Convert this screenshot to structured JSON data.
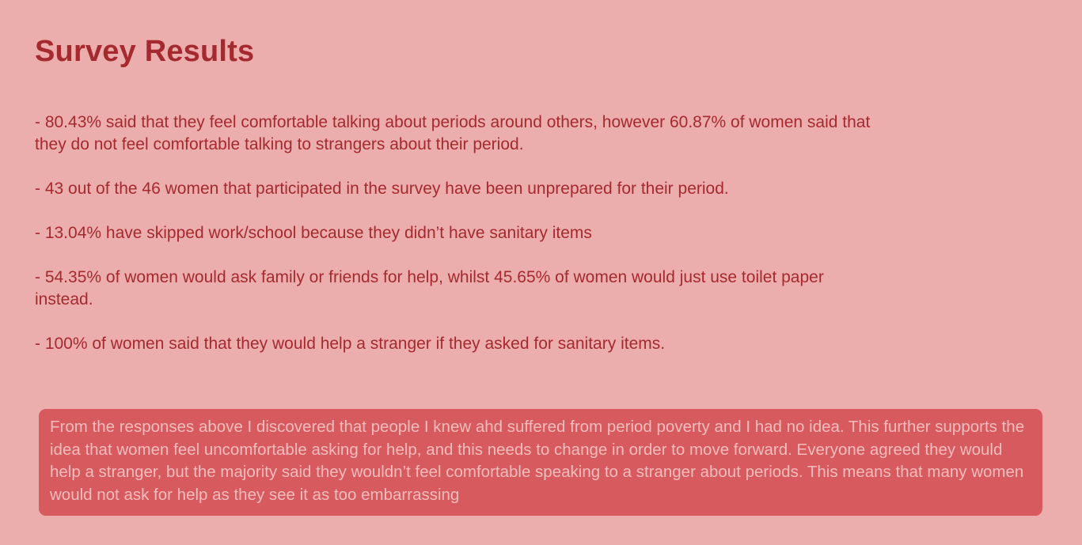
{
  "page": {
    "title": "Survey Results",
    "results": [
      "- 80.43% said that they feel comfortable talking about periods around others, however 60.87% of women said that they do not feel comfortable talking to strangers about their period.",
      "- 43 out of the 46 women that participated in the survey have been unprepared for their period.",
      "- 13.04% have skipped work/school because they didn’t have sanitary items",
      "- 54.35% of women would ask family or friends for help, whilst 45.65% of women would just use toilet paper instead.",
      "- 100% of women said that they would help a stranger if they asked for sanitary items."
    ],
    "conclusion": "From the responses above I discovered that people I knew ahd suffered from period poverty and I had no idea. This further supports the idea that women feel uncomfortable asking for help, and this needs to change in order to move forward. Everyone agreed they would help a stranger, but the majority said they wouldn’t feel comfortable speaking to a stranger about periods. This means that many women would not ask for help as they see it as too embarrassing"
  },
  "colors": {
    "background": "#ecadad",
    "heading": "#a52a2f",
    "callout_background": "#d65a5e",
    "callout_text": "#f4bcbc"
  }
}
